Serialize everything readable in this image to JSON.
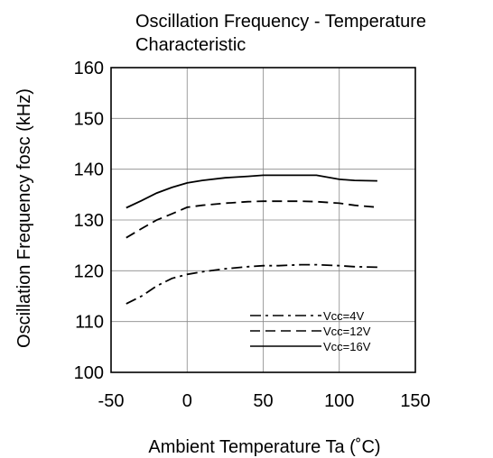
{
  "chart_data": {
    "type": "line",
    "title_lines": [
      "Oscillation Frequency - Temperature",
      "Characteristic"
    ],
    "xlabel": "Ambient Temperature Ta (˚C)",
    "ylabel": "Oscillation Frequency fosc (kHz)",
    "xlim": [
      -50,
      150
    ],
    "ylim": [
      100,
      160
    ],
    "x_ticks": [
      -50,
      0,
      50,
      100,
      150
    ],
    "y_ticks": [
      100,
      110,
      120,
      130,
      140,
      150,
      160
    ],
    "x_tick_labels": [
      "-50",
      "0",
      "50",
      "100",
      "150"
    ],
    "y_tick_labels": [
      "100",
      "110",
      "120",
      "130",
      "140",
      "150",
      "160"
    ],
    "grid": true,
    "legend_position": "bottom-right",
    "series": [
      {
        "name": "Vcc=4V",
        "style": "dash-dot",
        "x": [
          -40,
          -30,
          -20,
          -10,
          0,
          10,
          25,
          40,
          50,
          60,
          75,
          85,
          100,
          110,
          125
        ],
        "y": [
          113.5,
          115,
          117,
          118.5,
          119.3,
          119.8,
          120.4,
          120.8,
          121,
          121,
          121.2,
          121.2,
          121,
          120.8,
          120.7
        ]
      },
      {
        "name": "Vcc=12V",
        "style": "dashed",
        "x": [
          -40,
          -30,
          -20,
          -10,
          0,
          10,
          25,
          40,
          50,
          60,
          75,
          85,
          100,
          110,
          125
        ],
        "y": [
          126.5,
          128.3,
          130,
          131.2,
          132.5,
          132.9,
          133.3,
          133.6,
          133.7,
          133.7,
          133.7,
          133.6,
          133.3,
          132.9,
          132.5
        ]
      },
      {
        "name": "Vcc=16V",
        "style": "solid",
        "x": [
          -40,
          -30,
          -20,
          -10,
          0,
          10,
          25,
          40,
          50,
          60,
          75,
          85,
          100,
          110,
          125
        ],
        "y": [
          132.4,
          133.8,
          135.3,
          136.4,
          137.3,
          137.8,
          138.3,
          138.6,
          138.8,
          138.8,
          138.8,
          138.8,
          138,
          137.8,
          137.7
        ]
      }
    ]
  }
}
